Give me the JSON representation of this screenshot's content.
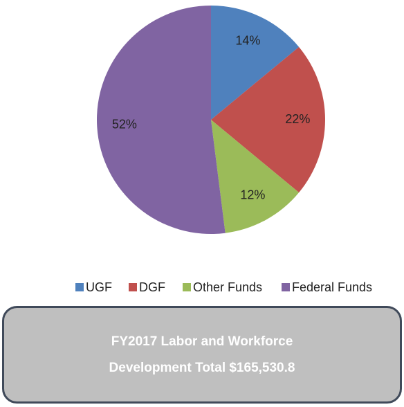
{
  "chart_data": {
    "type": "pie",
    "categories": [
      "UGF",
      "DGF",
      "Other Funds",
      "Federal Funds"
    ],
    "values": [
      14,
      22,
      12,
      52
    ],
    "value_labels": [
      "14%",
      "22%",
      "12%",
      "52%"
    ],
    "colors": [
      "#4f81bd",
      "#c0504d",
      "#9bbb59",
      "#8064a2"
    ],
    "legend": "bottom",
    "annotation": [
      "FY2017 Labor and Workforce",
      "Development Total $165,530.8"
    ]
  }
}
